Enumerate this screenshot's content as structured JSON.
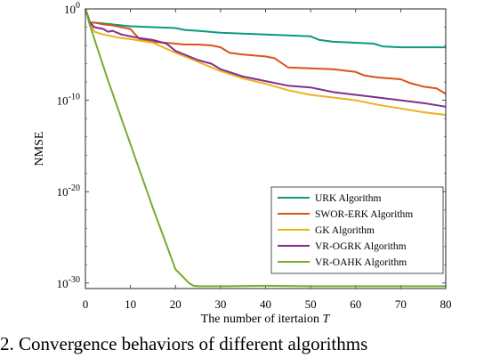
{
  "chart_data": {
    "type": "line",
    "xlabel": "The number of itertaion",
    "xlabel_var": "T",
    "ylabel": "NMSE",
    "xlim": [
      0,
      80
    ],
    "ylim_log10": [
      -30.6,
      0
    ],
    "yscale": "log",
    "grid": false,
    "legend_position": "lower-right",
    "x_ticks": [
      0,
      10,
      20,
      30,
      40,
      50,
      60,
      70,
      80
    ],
    "x_tick_labels": [
      "0",
      "10",
      "20",
      "30",
      "40",
      "50",
      "60",
      "70",
      "80"
    ],
    "y_ticks_log10": [
      0,
      -10,
      -20,
      -30
    ],
    "y_tick_labels": [
      {
        "base": "10",
        "exp": "0"
      },
      {
        "base": "10",
        "exp": "-10"
      },
      {
        "base": "10",
        "exp": "-20"
      },
      {
        "base": "10",
        "exp": "-30"
      }
    ],
    "series": [
      {
        "name": "URK Algorithm",
        "color": "#0b9a7d",
        "x": [
          0,
          1,
          2,
          4,
          6,
          8,
          10,
          15,
          20,
          22,
          25,
          30,
          40,
          50,
          52,
          55,
          60,
          64,
          66,
          70,
          75,
          80
        ],
        "log10_y": [
          0,
          -1.5,
          -1.5,
          -1.6,
          -1.7,
          -1.8,
          -1.9,
          -2.0,
          -2.1,
          -2.3,
          -2.4,
          -2.6,
          -2.8,
          -3.0,
          -3.4,
          -3.6,
          -3.7,
          -3.8,
          -4.1,
          -4.2,
          -4.2,
          -4.2
        ]
      },
      {
        "name": "SWOR-ERK Algorithm",
        "color": "#d95319",
        "x": [
          0,
          1,
          2,
          4,
          6,
          8,
          10,
          12,
          15,
          20,
          22,
          25,
          28,
          30,
          32,
          35,
          40,
          42,
          45,
          50,
          55,
          60,
          62,
          65,
          70,
          72,
          75,
          78,
          80
        ],
        "log10_y": [
          0,
          -1.5,
          -1.5,
          -1.7,
          -1.8,
          -2.0,
          -2.2,
          -3.3,
          -3.6,
          -3.8,
          -3.9,
          -3.9,
          -4.0,
          -4.2,
          -4.8,
          -5.0,
          -5.2,
          -5.4,
          -6.4,
          -6.5,
          -6.6,
          -6.9,
          -7.3,
          -7.5,
          -7.7,
          -8.1,
          -8.5,
          -8.7,
          -9.3
        ]
      },
      {
        "name": "GK Algorithm",
        "color": "#edb120",
        "x": [
          0,
          1,
          2,
          4,
          6,
          8,
          10,
          15,
          20,
          25,
          30,
          35,
          40,
          45,
          50,
          55,
          60,
          65,
          70,
          75,
          80
        ],
        "log10_y": [
          0,
          -1.5,
          -2.5,
          -2.8,
          -3.0,
          -3.2,
          -3.3,
          -3.7,
          -4.8,
          -5.8,
          -6.8,
          -7.6,
          -8.2,
          -8.9,
          -9.4,
          -9.7,
          -10.0,
          -10.5,
          -10.9,
          -11.3,
          -11.6
        ]
      },
      {
        "name": "VR-OGRK Algorithm",
        "color": "#7e2f8e",
        "x": [
          0,
          1,
          2,
          4,
          5,
          6,
          8,
          10,
          12,
          15,
          18,
          20,
          25,
          28,
          30,
          35,
          40,
          45,
          50,
          55,
          60,
          65,
          70,
          75,
          80
        ],
        "log10_y": [
          0,
          -1.5,
          -2.0,
          -2.2,
          -2.5,
          -2.4,
          -2.8,
          -3.0,
          -3.2,
          -3.4,
          -3.8,
          -4.6,
          -5.6,
          -6.0,
          -6.6,
          -7.4,
          -7.9,
          -8.4,
          -8.6,
          -9.1,
          -9.4,
          -9.7,
          -10.0,
          -10.3,
          -10.7
        ]
      },
      {
        "name": "VR-OAHK Algorithm",
        "color": "#77ac30",
        "x": [
          0,
          1,
          2,
          5,
          10,
          15,
          20,
          23,
          24,
          25,
          30,
          40,
          50,
          60,
          70,
          80
        ],
        "log10_y": [
          0,
          -1.8,
          -3.3,
          -7.8,
          -14.8,
          -21.8,
          -28.5,
          -30.0,
          -30.3,
          -30.35,
          -30.35,
          -30.3,
          -30.35,
          -30.35,
          -30.35,
          -30.35
        ]
      }
    ]
  },
  "caption": "2. Convergence behaviors of different algorithms"
}
